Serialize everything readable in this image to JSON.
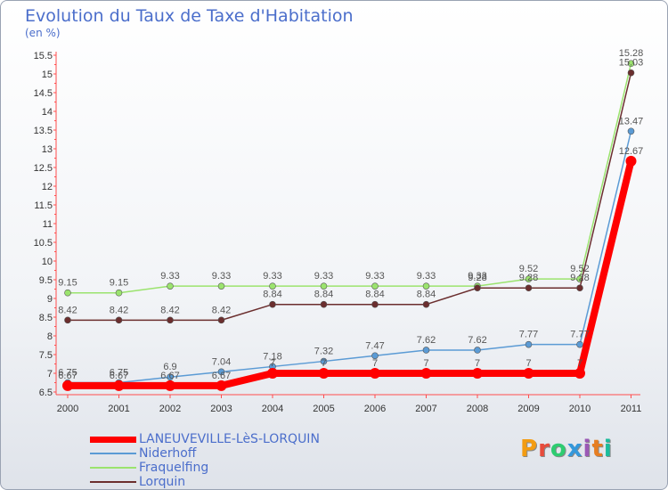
{
  "title": "Evolution du Taux de Taxe d'Habitation",
  "subtitle": "(en %)",
  "brand": {
    "text": "Proxiti",
    "colors": [
      "#f39c12",
      "#e74c3c",
      "#2ecc71",
      "#3498db",
      "#9b59b6",
      "#e67e22",
      "#1abc9c"
    ]
  },
  "chart_data": {
    "type": "line",
    "title": "Evolution du Taux de Taxe d'Habitation",
    "ylabel": "(en %)",
    "xlabel": "",
    "categories": [
      "2000",
      "2001",
      "2002",
      "2003",
      "2004",
      "2005",
      "2006",
      "2007",
      "2008",
      "2009",
      "2010",
      "2011"
    ],
    "ylim": [
      6.5,
      15.5
    ],
    "yticks": [
      "6.5",
      "7",
      "7.5",
      "8",
      "8.5",
      "9",
      "9.5",
      "10",
      "10.5",
      "11",
      "11.5",
      "12",
      "12.5",
      "13",
      "13.5",
      "14",
      "14.5",
      "15",
      "15.5"
    ],
    "grid": false,
    "legend_position": "bottom-left",
    "series": [
      {
        "name": "LANEUVEVILLE-LèS-LORQUIN",
        "color": "#ff0000",
        "width": 8,
        "marker": 6,
        "values": [
          6.67,
          6.67,
          6.67,
          6.67,
          7,
          7,
          7,
          7,
          7,
          7,
          7,
          12.67
        ],
        "labels": [
          "6.67",
          "6.67",
          "6.67",
          "6.67",
          "7",
          "7",
          "7",
          "7",
          "7",
          "7",
          "7",
          "12.67"
        ]
      },
      {
        "name": "Niderhoff",
        "color": "#5b9bd5",
        "width": 1.5,
        "marker": 3.5,
        "values": [
          6.75,
          6.75,
          6.9,
          7.04,
          7.18,
          7.32,
          7.47,
          7.62,
          7.62,
          7.77,
          7.77,
          13.47
        ],
        "labels": [
          "6.75",
          "6.75",
          "6.9",
          "7.04",
          "7.18",
          "7.32",
          "7.47",
          "7.62",
          "7.62",
          "7.77",
          "7.77",
          "13.47"
        ]
      },
      {
        "name": "Fraquelfing",
        "color": "#9be36e",
        "width": 1.5,
        "marker": 3.5,
        "values": [
          9.15,
          9.15,
          9.33,
          9.33,
          9.33,
          9.33,
          9.33,
          9.33,
          9.33,
          9.52,
          9.52,
          15.28
        ],
        "labels": [
          "9.15",
          "9.15",
          "9.33",
          "9.33",
          "9.33",
          "9.33",
          "9.33",
          "9.33",
          "9.33",
          "9.52",
          "9.52",
          "15.28"
        ]
      },
      {
        "name": "Lorquin",
        "color": "#6b2e2e",
        "width": 1.5,
        "marker": 3.5,
        "values": [
          8.42,
          8.42,
          8.42,
          8.42,
          8.84,
          8.84,
          8.84,
          8.84,
          9.28,
          9.28,
          9.28,
          15.03
        ],
        "labels": [
          "8.42",
          "8.42",
          "8.42",
          "8.42",
          "8.84",
          "8.84",
          "8.84",
          "8.84",
          "9.28",
          "9.28",
          "9.28",
          "15.03"
        ]
      }
    ]
  }
}
